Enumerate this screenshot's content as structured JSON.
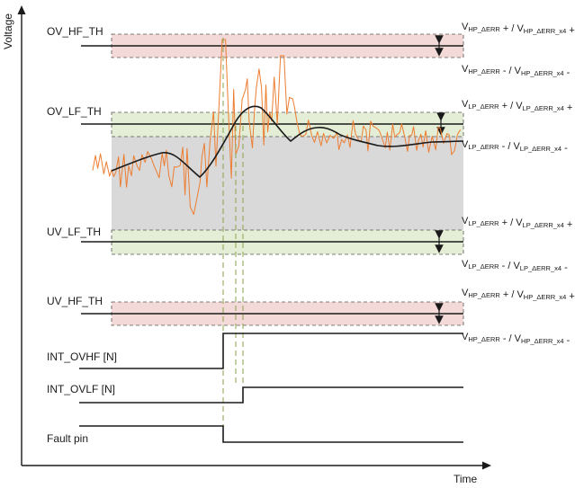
{
  "axes": {
    "y_label": "Voltage",
    "x_label": "Time"
  },
  "thresholds": {
    "ov_hf": "OV_HF_TH",
    "ov_lf": "OV_LF_TH",
    "uv_lf": "UV_LF_TH",
    "uv_hf": "UV_HF_TH"
  },
  "signals": {
    "int_ovhf": "INT_OVHF [N]",
    "int_ovlf": "INT_OVLF [N]",
    "fault": "Fault pin"
  },
  "annotations": {
    "hp": {
      "base": "V",
      "sub": "HP_ΔERR",
      "sub_x4": "HP_ΔERR_x4"
    },
    "lp": {
      "base": "V",
      "sub": "LP_ΔERR",
      "sub_x4": "LP_ΔERR_x4"
    },
    "plus": "+",
    "minus": "-",
    "sep": " / "
  },
  "colors": {
    "hf_band": "#f3d9d7",
    "lf_band": "#e4edd5",
    "normal_region": "#d9d9d9",
    "raw_signal": "#ed7d31",
    "filtered_signal": "#1a1a1a",
    "trigger_guide": "#8aa34a"
  }
}
